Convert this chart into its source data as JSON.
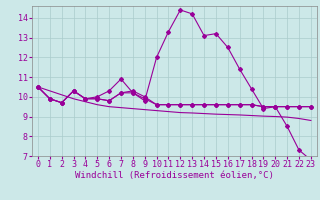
{
  "xlabel": "Windchill (Refroidissement éolien,°C)",
  "x": [
    0,
    1,
    2,
    3,
    4,
    5,
    6,
    7,
    8,
    9,
    10,
    11,
    12,
    13,
    14,
    15,
    16,
    17,
    18,
    19,
    20,
    21,
    22,
    23
  ],
  "line_main": [
    10.5,
    9.9,
    9.7,
    10.3,
    9.9,
    10.0,
    10.3,
    10.9,
    10.2,
    9.8,
    12.0,
    13.3,
    14.4,
    14.2,
    13.1,
    13.2,
    12.5,
    11.4,
    10.4,
    9.4,
    9.5,
    8.5,
    7.3,
    6.8
  ],
  "line_flat1": [
    10.5,
    9.9,
    9.7,
    10.3,
    9.9,
    9.9,
    9.8,
    10.2,
    10.3,
    10.0,
    9.6,
    9.6,
    9.6,
    9.6,
    9.6,
    9.6,
    9.6,
    9.6,
    9.6,
    9.5,
    9.5,
    9.5,
    9.5,
    9.5
  ],
  "line_flat2": [
    10.5,
    9.9,
    9.7,
    10.3,
    9.9,
    9.9,
    9.8,
    10.2,
    10.2,
    9.9,
    9.6,
    9.6,
    9.6,
    9.6,
    9.6,
    9.6,
    9.6,
    9.6,
    9.6,
    9.5,
    9.5,
    9.5,
    9.5,
    9.5
  ],
  "line_trend": [
    10.5,
    10.3,
    10.1,
    9.9,
    9.75,
    9.6,
    9.5,
    9.45,
    9.4,
    9.35,
    9.3,
    9.25,
    9.2,
    9.18,
    9.15,
    9.12,
    9.1,
    9.08,
    9.05,
    9.02,
    9.0,
    8.97,
    8.9,
    8.8
  ],
  "line_color": "#990099",
  "bg_color": "#cce8e8",
  "grid_color": "#aacccc",
  "ylim": [
    7,
    14.6
  ],
  "xlim": [
    -0.5,
    23.5
  ],
  "yticks": [
    7,
    8,
    9,
    10,
    11,
    12,
    13,
    14
  ],
  "xticks": [
    0,
    1,
    2,
    3,
    4,
    5,
    6,
    7,
    8,
    9,
    10,
    11,
    12,
    13,
    14,
    15,
    16,
    17,
    18,
    19,
    20,
    21,
    22,
    23
  ],
  "tick_fontsize": 6,
  "label_fontsize": 6.5
}
